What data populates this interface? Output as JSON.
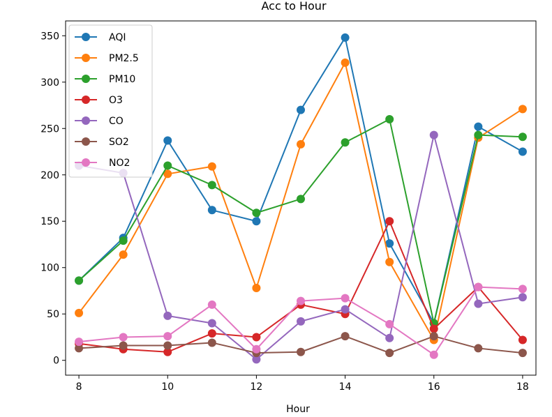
{
  "chart_data": {
    "type": "line",
    "title": "Acc to Hour",
    "xlabel": "Hour",
    "ylabel": "",
    "x": [
      8,
      9,
      10,
      11,
      12,
      13,
      14,
      15,
      16,
      17,
      18
    ],
    "xlim": [
      7.7,
      18.3
    ],
    "ylim": [
      -16,
      366
    ],
    "xticks": [
      8,
      10,
      12,
      14,
      16,
      18
    ],
    "yticks": [
      0,
      50,
      100,
      150,
      200,
      250,
      300,
      350
    ],
    "legend_position": "top-left",
    "grid": false,
    "series": [
      {
        "name": "AQI",
        "color": "#1f77b4",
        "values": [
          86,
          132,
          237,
          162,
          150,
          270,
          348,
          126,
          40,
          252,
          225
        ]
      },
      {
        "name": "PM2.5",
        "color": "#ff7f0e",
        "values": [
          51,
          114,
          201,
          209,
          78,
          233,
          321,
          106,
          22,
          240,
          271
        ]
      },
      {
        "name": "PM10",
        "color": "#2ca02c",
        "values": [
          86,
          129,
          210,
          189,
          159,
          174,
          235,
          260,
          40,
          243,
          241
        ]
      },
      {
        "name": "O3",
        "color": "#d62728",
        "values": [
          18,
          12,
          9,
          29,
          25,
          60,
          50,
          150,
          34,
          79,
          22
        ]
      },
      {
        "name": "CO",
        "color": "#9467bd",
        "values": [
          210,
          202,
          48,
          40,
          1,
          42,
          55,
          24,
          243,
          61,
          68
        ]
      },
      {
        "name": "SO2",
        "color": "#8c564b",
        "values": [
          13,
          16,
          16,
          19,
          8,
          9,
          26,
          8,
          26,
          13,
          8
        ]
      },
      {
        "name": "NO2",
        "color": "#e377c2",
        "values": [
          20,
          25,
          26,
          60,
          12,
          64,
          67,
          39,
          6,
          79,
          77
        ]
      }
    ]
  }
}
